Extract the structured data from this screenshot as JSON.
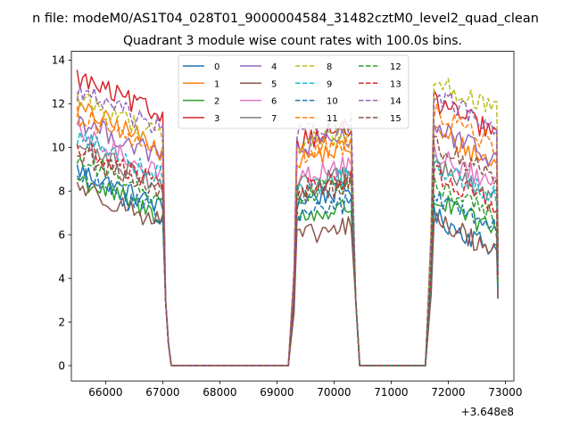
{
  "chart_data": {
    "type": "line",
    "suptitle": "n file: modeM0/AS1T04_028T01_9000004584_31482cztM0_level2_quad_clean",
    "title": "Quadrant 3 module wise count rates with 100.0s bins.",
    "xlabel": "",
    "ylabel": "",
    "x_offset_label": "+3.648e8",
    "xlim": [
      65400,
      73150
    ],
    "ylim": [
      -0.7,
      14.4
    ],
    "xticks": [
      66000,
      67000,
      68000,
      69000,
      70000,
      71000,
      72000,
      73000
    ],
    "xtick_labels": [
      "66000",
      "67000",
      "68000",
      "69000",
      "70000",
      "71000",
      "72000",
      "73000"
    ],
    "yticks": [
      0,
      2,
      4,
      6,
      8,
      10,
      12,
      14
    ],
    "ytick_labels": [
      "0",
      "2",
      "4",
      "6",
      "8",
      "10",
      "12",
      "14"
    ],
    "legend_location": "upper center",
    "segments": [
      {
        "start": 65500,
        "end": 67000
      },
      {
        "start": 69300,
        "end": 70300
      },
      {
        "start": 71700,
        "end": 72850
      }
    ],
    "series": [
      {
        "name": "0",
        "color": "#1f77b4",
        "dash": false,
        "levels": [
          9.0,
          7.5,
          6.9
        ]
      },
      {
        "name": "1",
        "color": "#ff7f0e",
        "dash": false,
        "levels": [
          11.8,
          9.4,
          10.8
        ]
      },
      {
        "name": "2",
        "color": "#2ca02c",
        "dash": false,
        "levels": [
          8.6,
          6.7,
          7.7
        ]
      },
      {
        "name": "3",
        "color": "#d62728",
        "dash": false,
        "levels": [
          13.2,
          10.3,
          12.2
        ]
      },
      {
        "name": "4",
        "color": "#9467bd",
        "dash": false,
        "levels": [
          11.3,
          9.9,
          11.0
        ]
      },
      {
        "name": "5",
        "color": "#8c564b",
        "dash": false,
        "levels": [
          8.3,
          5.8,
          6.8
        ]
      },
      {
        "name": "6",
        "color": "#e377c2",
        "dash": false,
        "levels": [
          10.6,
          8.6,
          9.8
        ]
      },
      {
        "name": "7",
        "color": "#7f7f7f",
        "dash": false,
        "levels": [
          10.1,
          8.1,
          9.2
        ]
      },
      {
        "name": "8",
        "color": "#bcbd22",
        "dash": true,
        "levels": [
          12.3,
          10.1,
          13.2
        ]
      },
      {
        "name": "9",
        "color": "#17becf",
        "dash": true,
        "levels": [
          10.5,
          8.1,
          9.3
        ]
      },
      {
        "name": "10",
        "color": "#1f77b4",
        "dash": true,
        "levels": [
          8.7,
          6.9,
          7.8
        ]
      },
      {
        "name": "11",
        "color": "#ff7f0e",
        "dash": true,
        "levels": [
          11.5,
          9.6,
          11.7
        ]
      },
      {
        "name": "12",
        "color": "#2ca02c",
        "dash": true,
        "levels": [
          9.5,
          7.8,
          8.4
        ]
      },
      {
        "name": "13",
        "color": "#d62728",
        "dash": true,
        "levels": [
          10.0,
          8.0,
          8.9
        ]
      },
      {
        "name": "14",
        "color": "#9467bd",
        "dash": true,
        "levels": [
          12.6,
          10.6,
          12.5
        ]
      },
      {
        "name": "15",
        "color": "#8c564b",
        "dash": true,
        "levels": [
          9.7,
          7.7,
          10.2
        ]
      }
    ]
  }
}
